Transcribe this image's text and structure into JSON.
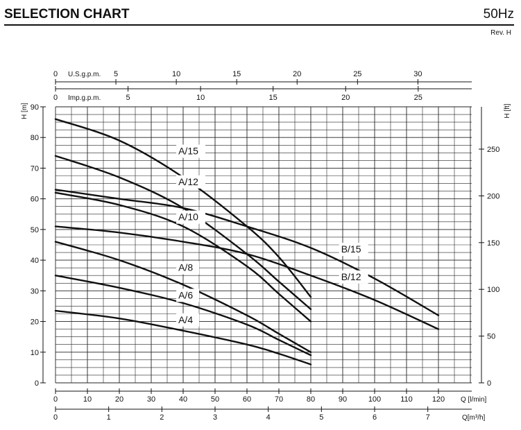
{
  "header": {
    "title": "SELECTION CHART",
    "frequency": "50Hz",
    "revision": "Rev. H"
  },
  "colors": {
    "ink": "#111111",
    "grid": "#222222",
    "background": "#ffffff"
  },
  "chart_data": {
    "type": "line",
    "xlabel": "Q [l/min]",
    "ylabel": "H [m]",
    "y2label": "H [ft]",
    "x_top1_label": "U.S.g.p.m.",
    "x_top2_label": "Imp.g.p.m.",
    "x_bottom2_label": "Q[m³/h]",
    "xlim": [
      0,
      130
    ],
    "ylim": [
      0,
      90
    ],
    "grid": true,
    "x_ticks": [
      "0",
      "10",
      "20",
      "30",
      "40",
      "50",
      "60",
      "70",
      "80",
      "90",
      "100",
      "110",
      "120"
    ],
    "y_ticks": [
      "0",
      "10",
      "20",
      "30",
      "40",
      "50",
      "60",
      "70",
      "80",
      "90"
    ],
    "y2_ticks": [
      "0",
      "50",
      "100",
      "150",
      "200",
      "250"
    ],
    "usgpm_ticks": [
      "0",
      "5",
      "10",
      "15",
      "20",
      "25",
      "30"
    ],
    "impgpm_ticks": [
      "0",
      "5",
      "10",
      "15",
      "20",
      "25"
    ],
    "m3h_ticks": [
      "0",
      "1",
      "2",
      "3",
      "4",
      "5",
      "6",
      "7"
    ],
    "series": [
      {
        "name": "A/15",
        "x": [
          0,
          20,
          40,
          60,
          70,
          80
        ],
        "y": [
          86,
          79,
          67,
          51,
          41,
          28
        ]
      },
      {
        "name": "A/12",
        "x": [
          0,
          20,
          40,
          60,
          70,
          80
        ],
        "y": [
          74,
          67,
          57,
          42,
          33,
          24
        ]
      },
      {
        "name": "A/10",
        "x": [
          0,
          20,
          40,
          60,
          70,
          80
        ],
        "y": [
          62,
          58,
          51,
          38,
          29,
          20
        ]
      },
      {
        "name": "A/8",
        "x": [
          0,
          20,
          40,
          60,
          70,
          80
        ],
        "y": [
          46,
          40,
          32,
          22,
          16,
          10
        ]
      },
      {
        "name": "A/6",
        "x": [
          0,
          20,
          40,
          60,
          70,
          80
        ],
        "y": [
          35,
          31,
          26,
          19,
          14,
          9
        ]
      },
      {
        "name": "A/4",
        "x": [
          0,
          20,
          40,
          60,
          70,
          80
        ],
        "y": [
          23.5,
          21,
          17,
          12.5,
          9.5,
          6
        ]
      },
      {
        "name": "B/15",
        "x": [
          0,
          20,
          40,
          60,
          80,
          100,
          120
        ],
        "y": [
          63,
          60,
          57,
          51,
          44,
          34,
          22
        ]
      },
      {
        "name": "B/12",
        "x": [
          0,
          20,
          40,
          60,
          80,
          100,
          120
        ],
        "y": [
          51,
          49,
          46,
          42,
          35,
          27,
          17.5
        ]
      }
    ],
    "annotations": [
      {
        "text": "A/15",
        "x": 38.5,
        "y": 74.5
      },
      {
        "text": "A/12",
        "x": 38.5,
        "y": 64.5
      },
      {
        "text": "A/10",
        "x": 38.5,
        "y": 53
      },
      {
        "text": "A/8",
        "x": 38.5,
        "y": 36.5
      },
      {
        "text": "A/6",
        "x": 38.5,
        "y": 27.5
      },
      {
        "text": "A/4",
        "x": 38.5,
        "y": 19.5
      },
      {
        "text": "B/15",
        "x": 89.5,
        "y": 42.5
      },
      {
        "text": "B/12",
        "x": 89.5,
        "y": 33.5
      }
    ]
  }
}
